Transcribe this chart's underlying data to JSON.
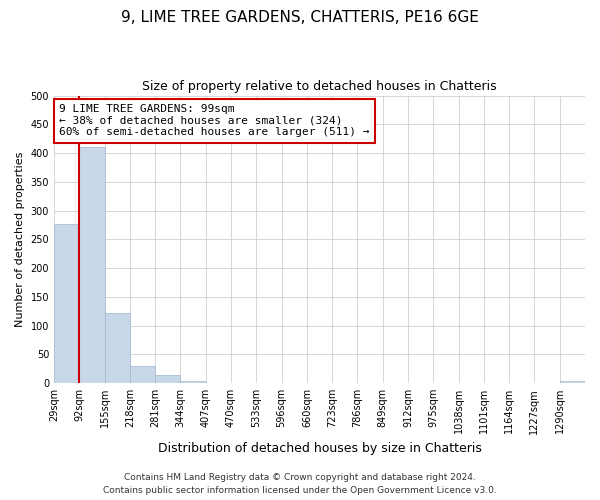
{
  "title": "9, LIME TREE GARDENS, CHATTERIS, PE16 6GE",
  "subtitle": "Size of property relative to detached houses in Chatteris",
  "xlabel": "Distribution of detached houses by size in Chatteris",
  "ylabel": "Number of detached properties",
  "bin_labels": [
    "29sqm",
    "92sqm",
    "155sqm",
    "218sqm",
    "281sqm",
    "344sqm",
    "407sqm",
    "470sqm",
    "533sqm",
    "596sqm",
    "660sqm",
    "723sqm",
    "786sqm",
    "849sqm",
    "912sqm",
    "975sqm",
    "1038sqm",
    "1101sqm",
    "1164sqm",
    "1227sqm",
    "1290sqm"
  ],
  "bar_values": [
    277,
    410,
    122,
    29,
    15,
    4,
    0,
    0,
    0,
    0,
    0,
    0,
    0,
    0,
    0,
    0,
    0,
    0,
    0,
    0,
    3
  ],
  "bar_color": "#c8d8e8",
  "bar_edgecolor": "#a0b8d0",
  "grid_color": "#d0d0d0",
  "vline_color": "#cc0000",
  "annotation_title": "9 LIME TREE GARDENS: 99sqm",
  "annotation_line1": "← 38% of detached houses are smaller (324)",
  "annotation_line2": "60% of semi-detached houses are larger (511) →",
  "annotation_box_color": "#ffffff",
  "annotation_border_color": "#cc0000",
  "footer_line1": "Contains HM Land Registry data © Crown copyright and database right 2024.",
  "footer_line2": "Contains public sector information licensed under the Open Government Licence v3.0.",
  "ylim": [
    0,
    500
  ],
  "yticks": [
    0,
    50,
    100,
    150,
    200,
    250,
    300,
    350,
    400,
    450,
    500
  ],
  "title_fontsize": 11,
  "subtitle_fontsize": 9,
  "xlabel_fontsize": 9,
  "ylabel_fontsize": 8,
  "tick_fontsize": 7,
  "annotation_fontsize": 8,
  "footer_fontsize": 6.5
}
